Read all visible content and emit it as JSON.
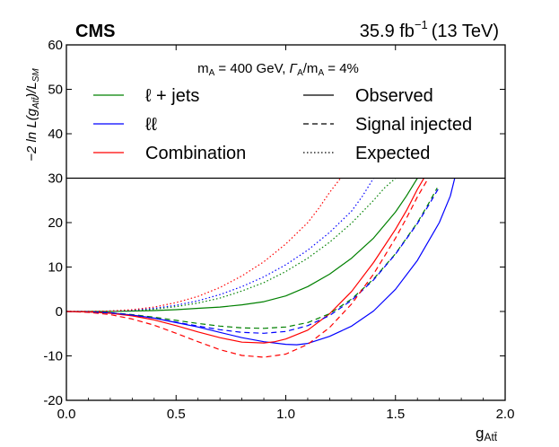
{
  "header": {
    "experiment": "CMS",
    "luminosity": "35.9 fb",
    "luminosity_exp": "−1",
    "energy": "(13 TeV)"
  },
  "chart_data": {
    "type": "line",
    "annotation": {
      "mass_label": "m",
      "mass_sub": "A",
      "mass_value": " = 400 GeV, ",
      "width_label": "Γ",
      "width_sub": "A",
      "width_sep": "/m",
      "width_sub2": "A",
      "width_value": " = 4%"
    },
    "xlabel": "g",
    "xlabel_sub": "Att̄",
    "ylabel": "−2 ln L(g",
    "ylabel_sub": "Att̄",
    "ylabel_mid": ")/L",
    "ylabel_sub2": "SM",
    "xlim": [
      0.0,
      2.0
    ],
    "ylim": [
      -20,
      60
    ],
    "x_ticks": [
      0.0,
      0.5,
      1.0,
      1.5,
      2.0
    ],
    "x_tick_labels": [
      "0.0",
      "0.5",
      "1.0",
      "1.5",
      "2.0"
    ],
    "y_ticks": [
      -20,
      -10,
      0,
      10,
      20,
      30,
      40,
      50,
      60
    ],
    "y_tick_labels": [
      "-20",
      "-10",
      "0",
      "10",
      "20",
      "30",
      "40",
      "50",
      "60"
    ],
    "separator_y": 30,
    "legend_channels": [
      {
        "label": "ℓ + jets",
        "color": "#008000"
      },
      {
        "label": "ℓℓ",
        "color": "#0000ff"
      },
      {
        "label": "Combination",
        "color": "#ff0000"
      }
    ],
    "legend_styles": [
      {
        "label": "Observed",
        "dash": "solid"
      },
      {
        "label": "Signal injected",
        "dash": "dashed"
      },
      {
        "label": "Expected",
        "dash": "dotted"
      }
    ],
    "series": [
      {
        "name": "ℓ + jets observed",
        "color": "#008000",
        "dash": "solid",
        "x": [
          0.0,
          0.1,
          0.2,
          0.3,
          0.4,
          0.5,
          0.6,
          0.7,
          0.8,
          0.9,
          1.0,
          1.1,
          1.2,
          1.3,
          1.4,
          1.5,
          1.55,
          1.6
        ],
        "y": [
          0.0,
          0.0,
          0.0,
          0.1,
          0.2,
          0.4,
          0.7,
          1.0,
          1.5,
          2.2,
          3.5,
          5.6,
          8.4,
          12.0,
          16.5,
          22.4,
          26.0,
          30.0
        ]
      },
      {
        "name": "ℓℓ observed",
        "color": "#0000ff",
        "dash": "solid",
        "x": [
          0.0,
          0.1,
          0.2,
          0.3,
          0.4,
          0.5,
          0.6,
          0.7,
          0.8,
          0.9,
          1.0,
          1.05,
          1.1,
          1.2,
          1.3,
          1.4,
          1.5,
          1.6,
          1.7,
          1.75,
          1.77
        ],
        "y": [
          0.0,
          -0.1,
          -0.3,
          -0.8,
          -1.5,
          -2.5,
          -3.5,
          -4.7,
          -5.9,
          -6.8,
          -7.4,
          -7.5,
          -7.2,
          -5.6,
          -3.3,
          0.1,
          5.0,
          11.5,
          20.0,
          26.0,
          30.0
        ]
      },
      {
        "name": "Combination observed",
        "color": "#ff0000",
        "dash": "solid",
        "x": [
          0.0,
          0.1,
          0.2,
          0.3,
          0.4,
          0.5,
          0.6,
          0.7,
          0.8,
          0.9,
          0.95,
          1.0,
          1.1,
          1.2,
          1.3,
          1.4,
          1.5,
          1.55,
          1.6,
          1.63
        ],
        "y": [
          0.0,
          -0.1,
          -0.4,
          -1.0,
          -1.9,
          -3.2,
          -4.6,
          -5.9,
          -6.9,
          -7.1,
          -6.8,
          -6.2,
          -4.2,
          -0.5,
          4.5,
          11.0,
          18.5,
          22.7,
          27.5,
          30.0
        ]
      },
      {
        "name": "ℓ + jets signal injected",
        "color": "#008000",
        "dash": "dashed",
        "x": [
          0.0,
          0.1,
          0.2,
          0.3,
          0.4,
          0.5,
          0.6,
          0.7,
          0.8,
          0.9,
          1.0,
          1.1,
          1.2,
          1.3,
          1.4,
          1.5,
          1.6,
          1.65,
          1.69
        ],
        "y": [
          0.0,
          -0.1,
          -0.3,
          -0.7,
          -1.3,
          -2.0,
          -2.7,
          -3.3,
          -3.7,
          -3.8,
          -3.5,
          -2.5,
          -0.5,
          2.8,
          7.3,
          13.0,
          20.0,
          24.2,
          27.8
        ]
      },
      {
        "name": "ℓℓ signal injected",
        "color": "#0000ff",
        "dash": "dashed",
        "x": [
          0.0,
          0.1,
          0.2,
          0.3,
          0.4,
          0.5,
          0.6,
          0.7,
          0.8,
          0.9,
          1.0,
          1.1,
          1.2,
          1.3,
          1.4,
          1.5,
          1.6,
          1.65,
          1.7
        ],
        "y": [
          0.0,
          -0.1,
          -0.3,
          -0.8,
          -1.5,
          -2.4,
          -3.3,
          -4.1,
          -4.7,
          -4.9,
          -4.5,
          -3.2,
          -0.9,
          2.5,
          7.1,
          12.9,
          19.8,
          23.8,
          28.0
        ]
      },
      {
        "name": "Combination signal injected",
        "color": "#ff0000",
        "dash": "dashed",
        "x": [
          0.0,
          0.1,
          0.2,
          0.3,
          0.4,
          0.5,
          0.6,
          0.7,
          0.8,
          0.9,
          1.0,
          1.1,
          1.2,
          1.3,
          1.4,
          1.5,
          1.55,
          1.6,
          1.65
        ],
        "y": [
          0.0,
          -0.2,
          -0.7,
          -1.7,
          -3.1,
          -4.9,
          -6.8,
          -8.6,
          -9.9,
          -10.3,
          -9.6,
          -7.4,
          -3.6,
          1.7,
          8.4,
          16.5,
          21.0,
          25.8,
          30.0
        ]
      },
      {
        "name": "ℓ + jets expected",
        "color": "#008000",
        "dash": "dotted",
        "x": [
          0.0,
          0.1,
          0.2,
          0.3,
          0.4,
          0.5,
          0.6,
          0.7,
          0.8,
          0.9,
          1.0,
          1.1,
          1.2,
          1.3,
          1.4,
          1.45,
          1.5
        ],
        "y": [
          0.0,
          0.0,
          0.1,
          0.2,
          0.5,
          1.1,
          1.9,
          3.0,
          4.6,
          6.5,
          9.0,
          12.0,
          15.6,
          19.9,
          25.0,
          27.8,
          30.0
        ]
      },
      {
        "name": "ℓℓ expected",
        "color": "#0000ff",
        "dash": "dotted",
        "x": [
          0.0,
          0.1,
          0.2,
          0.3,
          0.4,
          0.5,
          0.6,
          0.7,
          0.8,
          0.9,
          1.0,
          1.1,
          1.2,
          1.3,
          1.35,
          1.4
        ],
        "y": [
          0.0,
          0.0,
          0.1,
          0.3,
          0.7,
          1.4,
          2.4,
          3.8,
          5.6,
          7.8,
          10.5,
          13.8,
          17.8,
          22.6,
          26.0,
          30.0
        ]
      },
      {
        "name": "Combination expected",
        "color": "#ff0000",
        "dash": "dotted",
        "x": [
          0.0,
          0.1,
          0.2,
          0.3,
          0.4,
          0.5,
          0.6,
          0.7,
          0.8,
          0.9,
          1.0,
          1.1,
          1.15,
          1.2,
          1.25
        ],
        "y": [
          0.0,
          0.0,
          0.1,
          0.4,
          1.0,
          2.0,
          3.4,
          5.4,
          8.0,
          11.2,
          15.2,
          20.0,
          23.2,
          26.8,
          30.0
        ]
      }
    ]
  }
}
